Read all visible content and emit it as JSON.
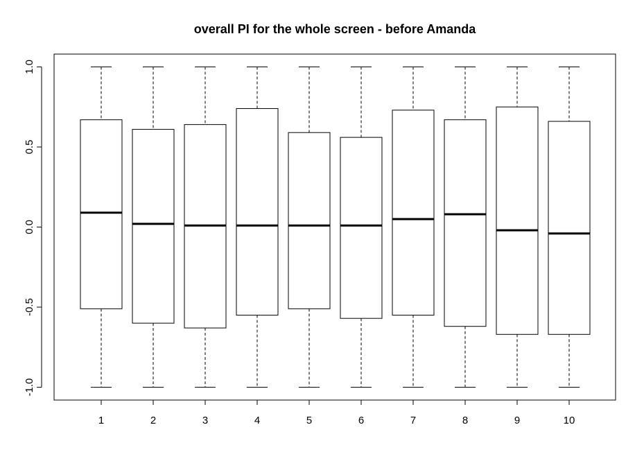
{
  "chart_data": {
    "type": "boxplot",
    "title": "overall PI for the whole screen - before Amanda",
    "xlabel": "",
    "ylabel": "",
    "categories": [
      "1",
      "2",
      "3",
      "4",
      "5",
      "6",
      "7",
      "8",
      "9",
      "10"
    ],
    "ylim": [
      -1.08,
      1.08
    ],
    "yticks": [
      -1.0,
      -0.5,
      0.0,
      0.5,
      1.0
    ],
    "ytick_labels": [
      "-1.0",
      "-0.5",
      "0.0",
      "0.5",
      "1.0"
    ],
    "grid": false,
    "legend": "none",
    "boxes": [
      {
        "min": -1.0,
        "q1": -0.51,
        "median": 0.09,
        "q3": 0.67,
        "max": 1.0
      },
      {
        "min": -1.0,
        "q1": -0.6,
        "median": 0.02,
        "q3": 0.61,
        "max": 1.0
      },
      {
        "min": -1.0,
        "q1": -0.63,
        "median": 0.01,
        "q3": 0.64,
        "max": 1.0
      },
      {
        "min": -1.0,
        "q1": -0.55,
        "median": 0.01,
        "q3": 0.74,
        "max": 1.0
      },
      {
        "min": -1.0,
        "q1": -0.51,
        "median": 0.01,
        "q3": 0.59,
        "max": 1.0
      },
      {
        "min": -1.0,
        "q1": -0.57,
        "median": 0.01,
        "q3": 0.56,
        "max": 1.0
      },
      {
        "min": -1.0,
        "q1": -0.55,
        "median": 0.05,
        "q3": 0.73,
        "max": 1.0
      },
      {
        "min": -1.0,
        "q1": -0.62,
        "median": 0.08,
        "q3": 0.67,
        "max": 1.0
      },
      {
        "min": -1.0,
        "q1": -0.67,
        "median": -0.02,
        "q3": 0.75,
        "max": 1.0
      },
      {
        "min": -1.0,
        "q1": -0.67,
        "median": -0.04,
        "q3": 0.66,
        "max": 1.0
      }
    ]
  }
}
